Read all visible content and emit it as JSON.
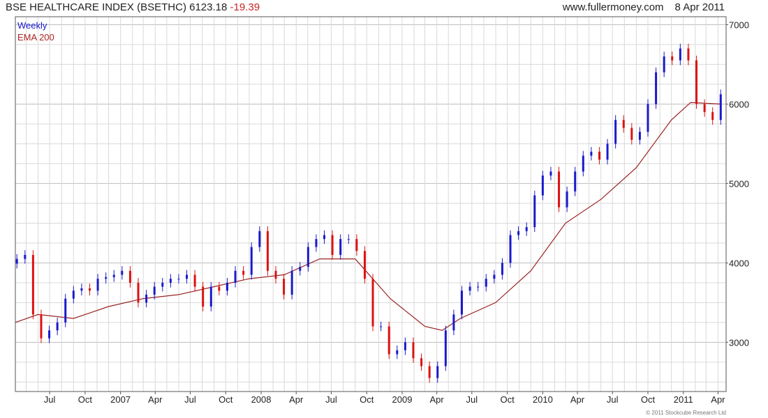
{
  "header": {
    "title": "BSE HEALTHCARE INDEX (BSETHC) 6123.18",
    "change": "-19.39",
    "website": "www.fullermoney.com",
    "date": "8 Apr 2011"
  },
  "legend": {
    "weekly": "Weekly",
    "ema": "EMA 200"
  },
  "copyright": "© 2011 Stockcube Research Ltd",
  "colors": {
    "up": "#1a1acc",
    "down": "#dd1111",
    "ema": "#992222",
    "grid": "#d9d9d9",
    "gridMajor": "#bdbdbd",
    "axis": "#555555"
  },
  "chart_data": {
    "type": "candlestick",
    "title": "BSE HEALTHCARE INDEX (BSETHC) 6123.18 -19.39",
    "ylim": [
      2380,
      7100
    ],
    "y_ticks": [
      3000,
      4000,
      5000,
      6000,
      7000
    ],
    "y_tick_labels": [
      "3000",
      "4000",
      "5000",
      "6000",
      "7000"
    ],
    "x_tick_labels": [
      "Jul",
      "Oct",
      "2007",
      "Apr",
      "Jul",
      "Oct",
      "2008",
      "Apr",
      "Jul",
      "Oct",
      "2009",
      "Apr",
      "Jul",
      "Oct",
      "2010",
      "Apr",
      "Jul",
      "Oct",
      "2011",
      "Apr"
    ],
    "x_range": [
      "2006-04-03",
      "2011-04-22"
    ],
    "x_tick_dates": [
      "2006-07-01",
      "2006-10-01",
      "2007-01-01",
      "2007-04-01",
      "2007-07-01",
      "2007-10-01",
      "2008-01-01",
      "2008-04-01",
      "2008-07-01",
      "2008-10-01",
      "2009-01-01",
      "2009-04-01",
      "2009-07-01",
      "2009-10-01",
      "2010-01-01",
      "2010-04-01",
      "2010-07-01",
      "2010-10-01",
      "2011-01-01",
      "2011-04-01"
    ],
    "grid": true,
    "legend": "top-left",
    "series": [
      {
        "name": "Weekly",
        "type": "ohlc-close",
        "x": [
          "2006-04-07",
          "2006-04-28",
          "2006-05-19",
          "2006-06-09",
          "2006-06-30",
          "2006-07-21",
          "2006-08-11",
          "2006-09-01",
          "2006-09-22",
          "2006-10-13",
          "2006-11-03",
          "2006-11-24",
          "2006-12-15",
          "2007-01-05",
          "2007-01-26",
          "2007-02-16",
          "2007-03-09",
          "2007-03-30",
          "2007-04-20",
          "2007-05-11",
          "2007-06-01",
          "2007-06-22",
          "2007-07-13",
          "2007-08-03",
          "2007-08-24",
          "2007-09-14",
          "2007-10-05",
          "2007-10-26",
          "2007-11-16",
          "2007-12-07",
          "2007-12-28",
          "2008-01-18",
          "2008-02-08",
          "2008-02-29",
          "2008-03-21",
          "2008-04-11",
          "2008-05-02",
          "2008-05-23",
          "2008-06-13",
          "2008-07-04",
          "2008-07-25",
          "2008-08-15",
          "2008-09-05",
          "2008-09-26",
          "2008-10-17",
          "2008-11-07",
          "2008-11-28",
          "2008-12-19",
          "2009-01-09",
          "2009-01-30",
          "2009-02-20",
          "2009-03-13",
          "2009-04-03",
          "2009-04-24",
          "2009-05-15",
          "2009-06-05",
          "2009-06-26",
          "2009-07-17",
          "2009-08-07",
          "2009-08-28",
          "2009-09-18",
          "2009-10-09",
          "2009-10-30",
          "2009-11-20",
          "2009-12-11",
          "2010-01-01",
          "2010-01-22",
          "2010-02-12",
          "2010-03-05",
          "2010-03-26",
          "2010-04-16",
          "2010-05-07",
          "2010-05-28",
          "2010-06-18",
          "2010-07-09",
          "2010-07-30",
          "2010-08-20",
          "2010-09-10",
          "2010-10-01",
          "2010-10-22",
          "2010-11-12",
          "2010-12-03",
          "2010-12-24",
          "2011-01-14",
          "2011-02-04",
          "2011-02-25",
          "2011-03-18",
          "2011-04-08"
        ],
        "close": [
          4050,
          4100,
          3350,
          3050,
          3150,
          3250,
          3550,
          3650,
          3680,
          3650,
          3800,
          3820,
          3850,
          3900,
          3750,
          3500,
          3600,
          3700,
          3750,
          3800,
          3800,
          3850,
          3700,
          3450,
          3700,
          3650,
          3750,
          3900,
          3850,
          4200,
          4400,
          3900,
          3800,
          3600,
          3900,
          3950,
          4200,
          4300,
          4350,
          4100,
          4300,
          4300,
          4150,
          3800,
          3200,
          3200,
          2850,
          2900,
          3000,
          2800,
          2700,
          2550,
          2700,
          3150,
          3350,
          3650,
          3700,
          3700,
          3800,
          3850,
          4000,
          4350,
          4400,
          4450,
          4850,
          5100,
          5150,
          4700,
          4900,
          5150,
          5350,
          5400,
          5300,
          5500,
          5800,
          5700,
          5550,
          5650,
          6000,
          6400,
          6600,
          6550,
          6700,
          6550,
          6000,
          5900,
          5800,
          6123
        ]
      },
      {
        "name": "EMA 200",
        "type": "line",
        "x": [
          "2006-04-03",
          "2006-06-01",
          "2006-09-01",
          "2006-12-01",
          "2007-03-01",
          "2007-06-01",
          "2007-09-01",
          "2007-12-01",
          "2008-03-01",
          "2008-06-01",
          "2008-09-01",
          "2008-12-01",
          "2009-03-01",
          "2009-04-15",
          "2009-06-01",
          "2009-09-01",
          "2009-12-01",
          "2010-03-01",
          "2010-06-01",
          "2010-09-01",
          "2010-12-01",
          "2011-01-20",
          "2011-04-08"
        ],
        "values": [
          3250,
          3350,
          3300,
          3450,
          3550,
          3600,
          3700,
          3800,
          3850,
          4050,
          4050,
          3550,
          3200,
          3150,
          3300,
          3500,
          3900,
          4500,
          4800,
          5200,
          5800,
          6020,
          6000
        ]
      }
    ]
  }
}
